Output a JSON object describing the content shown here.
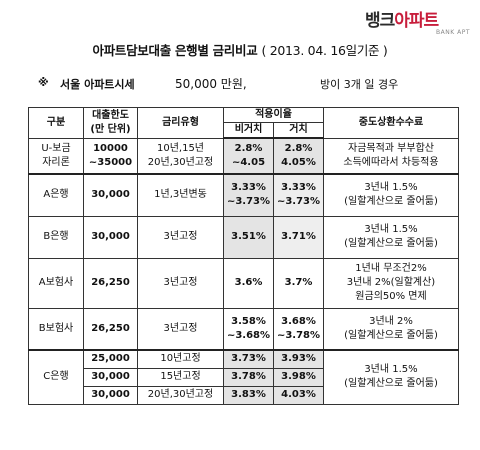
{
  "logo": {
    "main_1": "뱅크",
    "main_2": "아파트",
    "sub": "BANK APT"
  },
  "title": {
    "main": "아파트담보대출 은행별 금리비교",
    "date": "( 2013. 04. 16일기준 )"
  },
  "condition": {
    "mark": "※",
    "region": "서울 아파트시세",
    "amount": "50,000 만원,",
    "note": "방이 3개 일 경우"
  },
  "table": {
    "headers": {
      "category": "구분",
      "limit_1": "대출한도",
      "limit_2": "(만 단위)",
      "rate_type": "금리유형",
      "applied_rate": "적용이율",
      "non_deferred": "비거치",
      "deferred": "거치",
      "fee": "중도상환수수료"
    },
    "rows": [
      {
        "name_1": "U-보금",
        "name_2": "자리론",
        "limit_1": "10000",
        "limit_2": "~35000",
        "type_1": "10년,15년",
        "type_2": "20년,30년고정",
        "non_1": "2.8%",
        "non_2": "~4.05",
        "def_1": "2.8%",
        "def_2": "4.05%",
        "fee_1": "자금목적과 부부합산",
        "fee_2": "소득에따라서 차등적용"
      },
      {
        "name_1": "A은행",
        "limit_1": "30,000",
        "type_1": "1년,3년변동",
        "non_1": "3.33%",
        "non_2": "~3.73%",
        "def_1": "3.33%",
        "def_2": "~3.73%",
        "fee_1": "3년내 1.5%",
        "fee_2": "(일할계산으로 줄어듦)"
      },
      {
        "name_1": "B은행",
        "limit_1": "30,000",
        "type_1": "3년고정",
        "non_1": "3.51%",
        "def_1": "3.71%",
        "fee_1": "3년내 1.5%",
        "fee_2": "(일할계산으로 줄어듦)"
      },
      {
        "name_1": "A보험사",
        "limit_1": "26,250",
        "type_1": "3년고정",
        "non_1": "3.6%",
        "def_1": "3.7%",
        "fee_1": "1년내 무조건2%",
        "fee_2": "3년내 2%(일할계산)",
        "fee_3": "원금의50% 면제"
      },
      {
        "name_1": "B보험사",
        "limit_1": "26,250",
        "type_1": "3년고정",
        "non_1": "3.58%",
        "non_2": "~3.68%",
        "def_1": "3.68%",
        "def_2": "~3.78%",
        "fee_1": "3년내 2%",
        "fee_2": "(일할계산으로 줄어듦)"
      }
    ],
    "c_bank": {
      "name": "C은행",
      "sub": [
        {
          "limit": "25,000",
          "type": "10년고정",
          "non": "3.73%",
          "def": "3.93%"
        },
        {
          "limit": "30,000",
          "type": "15년고정",
          "non": "3.78%",
          "def": "3.98%"
        },
        {
          "limit": "30,000",
          "type": "20년,30년고정",
          "non": "3.83%",
          "def": "4.03%"
        }
      ],
      "fee_1": "3년내 1.5%",
      "fee_2": "(일할계산으로 줄어듦)"
    }
  }
}
